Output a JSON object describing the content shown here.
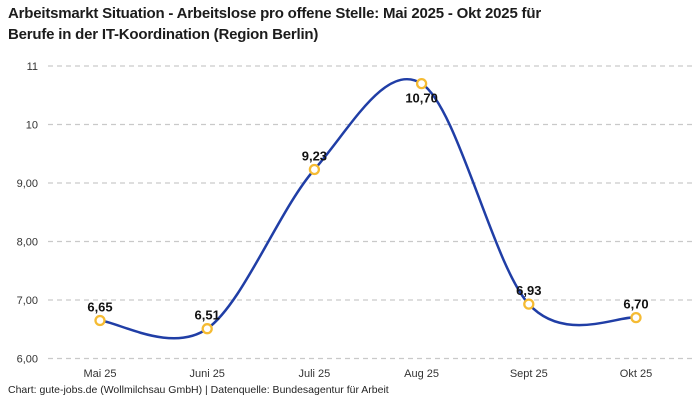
{
  "title_lines": [
    "Arbeitsmarkt Situation - Arbeitslose pro offene Stelle: Mai 2025 - Okt 2025 für",
    "Berufe in der IT-Koordination (Region Berlin)"
  ],
  "footer": "Chart: gute-jobs.de (Wollmilchsau GmbH) | Datenquelle: Bundesagentur für Arbeit",
  "chart_data": {
    "type": "line",
    "title": "Arbeitsmarkt Situation - Arbeitslose pro offene Stelle: Mai 2025 - Okt 2025 für Berufe in der IT-Koordination (Region Berlin)",
    "categories": [
      "Mai 25",
      "Juni 25",
      "Juli 25",
      "Aug 25",
      "Sept 25",
      "Okt 25"
    ],
    "values": [
      6.65,
      6.51,
      9.23,
      10.7,
      6.93,
      6.7
    ],
    "point_labels": [
      "6,65",
      "6,51",
      "9,23",
      "10,70",
      "6,93",
      "6,70"
    ],
    "point_label_positions": [
      "above",
      "above",
      "above",
      "below",
      "above",
      "above"
    ],
    "y_ticks": [
      {
        "value": 11,
        "label": "11"
      },
      {
        "value": 10,
        "label": "10"
      },
      {
        "value": 9,
        "label": "9,00"
      },
      {
        "value": 8,
        "label": "8,00"
      },
      {
        "value": 7,
        "label": "7,00"
      },
      {
        "value": 6,
        "label": "6,00"
      }
    ],
    "ylim": [
      6,
      11
    ],
    "xlabel": "",
    "ylabel": "",
    "grid": "horizontal-dashed",
    "legend": "none",
    "curve": "smooth-spline",
    "colors": {
      "line": "#203ea6",
      "marker_stroke": "#f5bb33",
      "marker_fill": "#ffffff",
      "grid": "#c9c9c9",
      "tick_label": "#333333",
      "point_label": "#111111",
      "title": "#1c1c1c",
      "footer": "#242424",
      "background": "#ffffff"
    }
  }
}
